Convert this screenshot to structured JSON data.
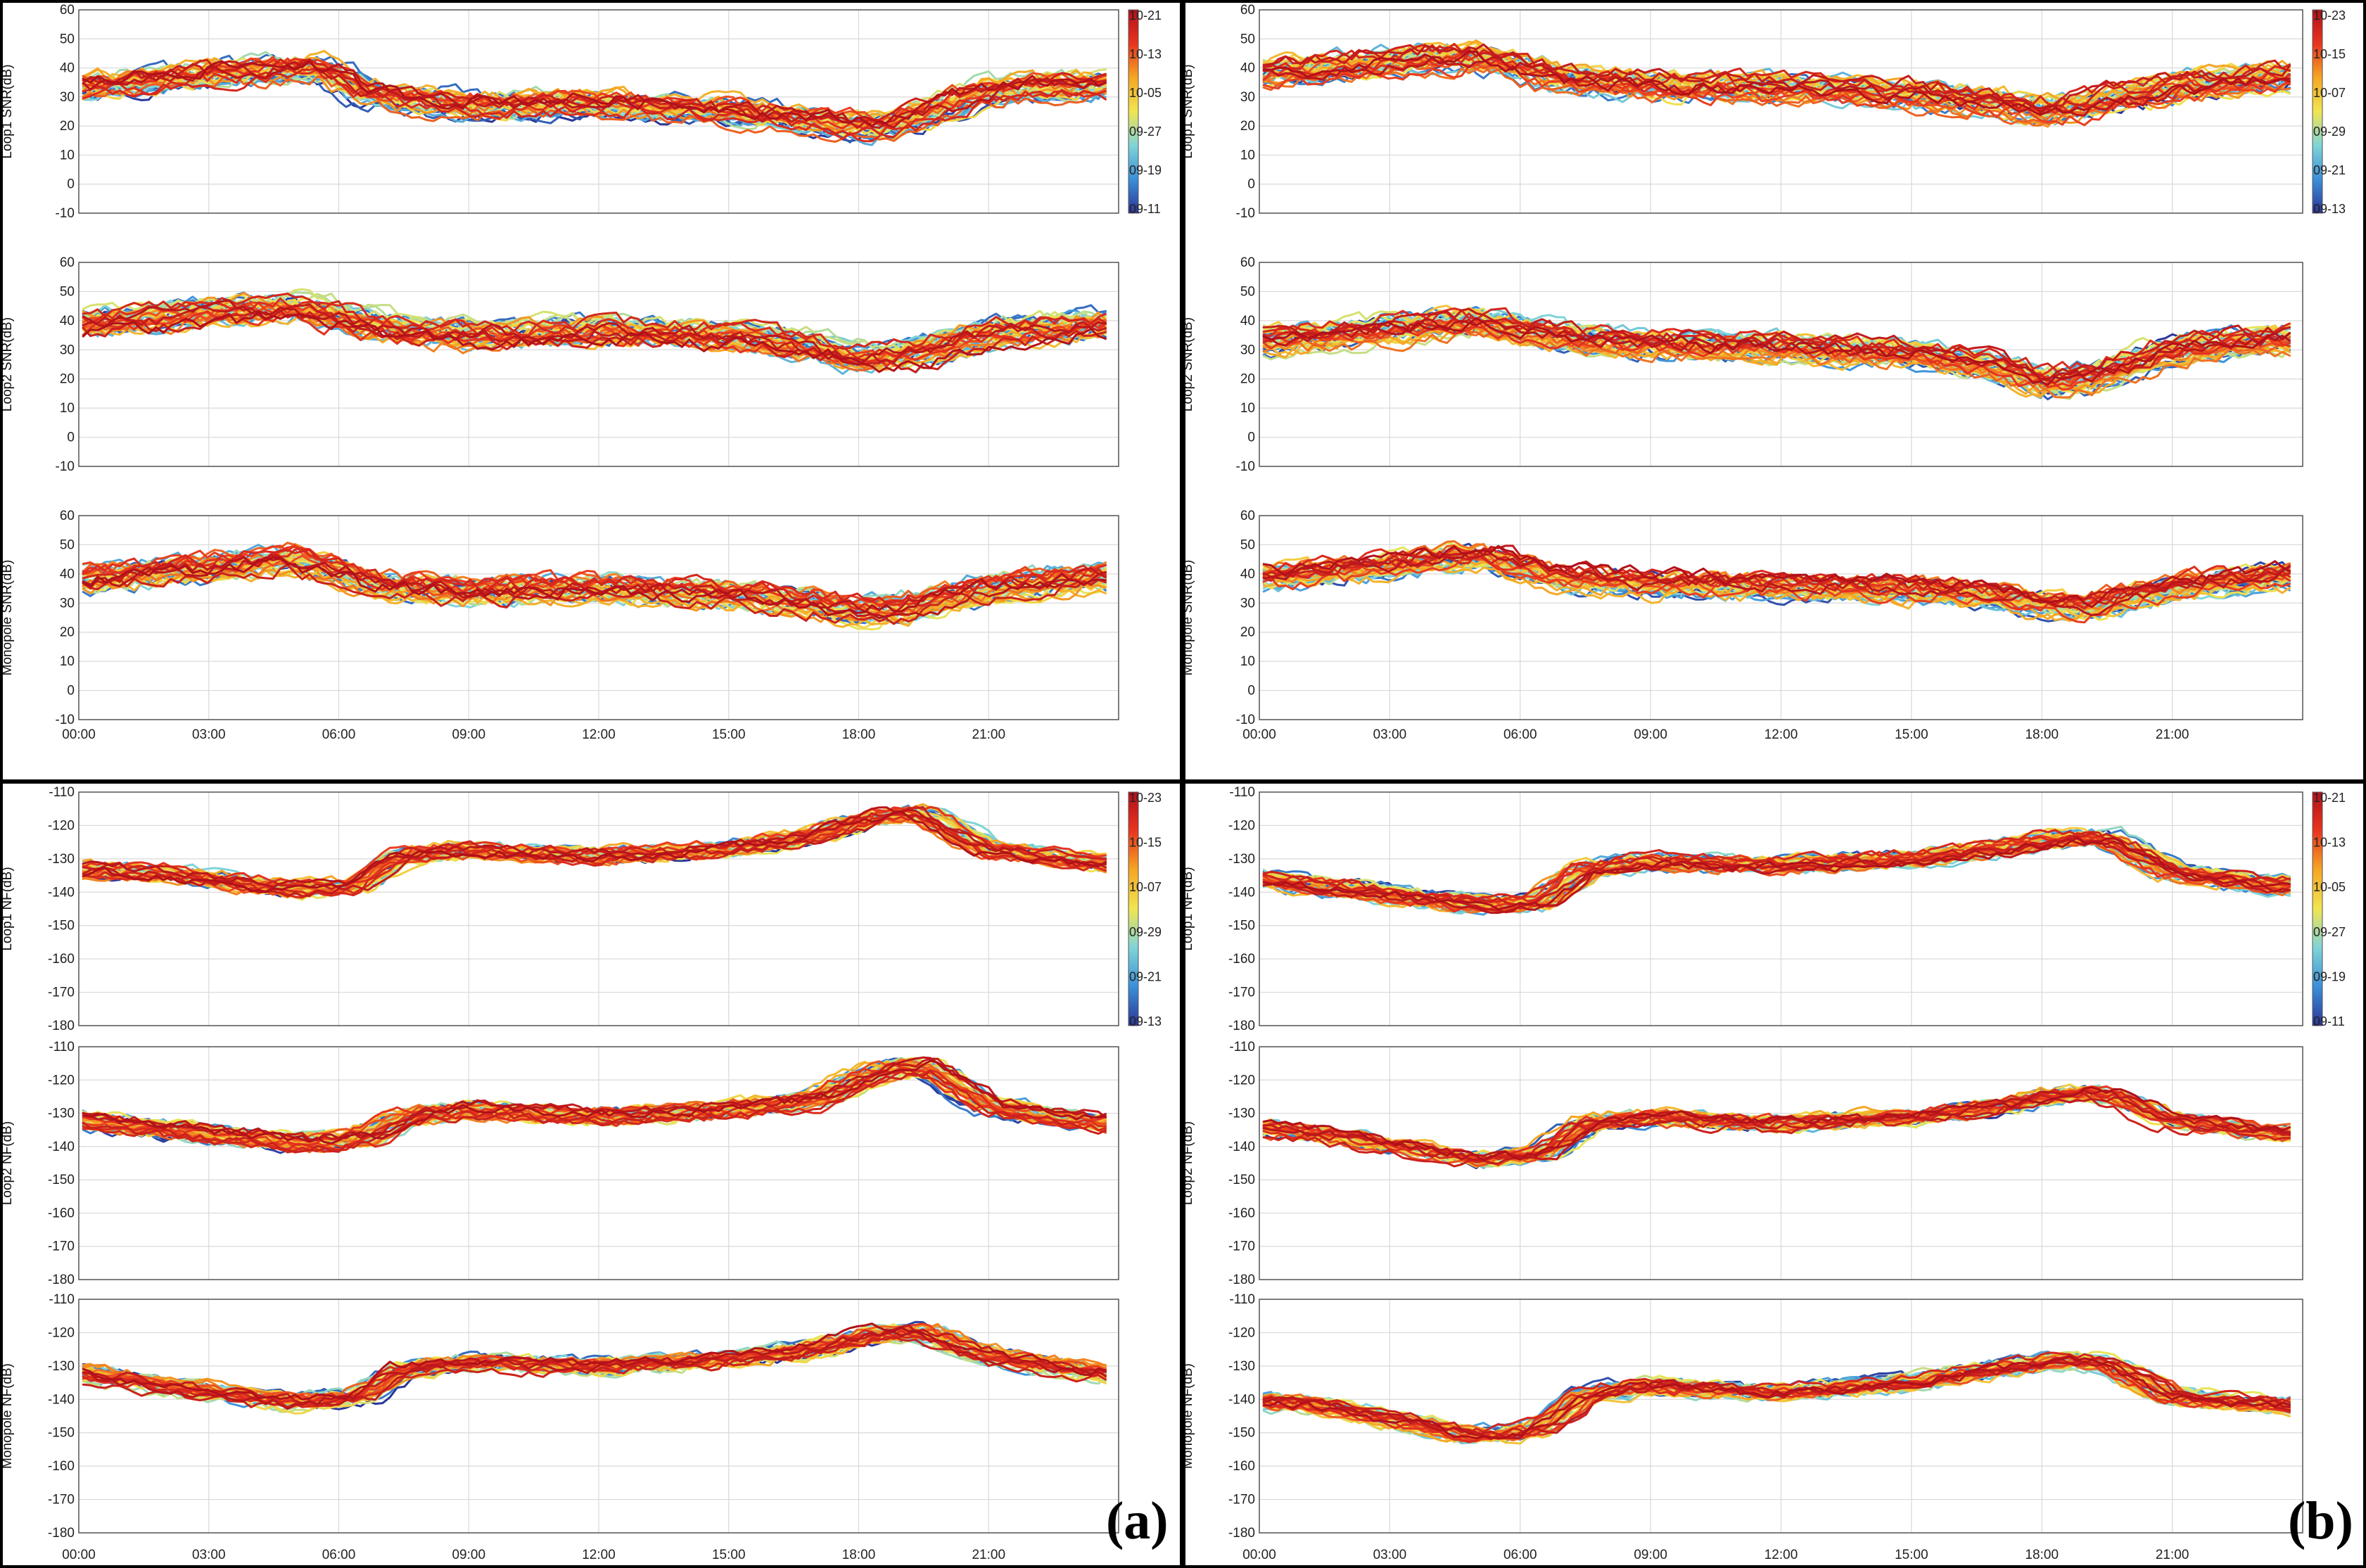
{
  "figure": {
    "panel_labels": [
      "(a)",
      "(b)"
    ]
  },
  "colormap_stops": [
    "#2b3598",
    "#3b8fd9",
    "#7fd4d8",
    "#f1e550",
    "#f5a623",
    "#e8351f",
    "#b2101a"
  ],
  "chart_data": [
    {
      "type": "line",
      "group": "a",
      "metric": "snr",
      "ylabel": "Loop1 SNR(dB)",
      "ylim": [
        -10,
        60
      ],
      "yticks": [
        "60",
        "50",
        "40",
        "30",
        "20",
        "10",
        "0",
        "-10"
      ],
      "xticks": [
        "00:00",
        "03:00",
        "06:00",
        "09:00",
        "12:00",
        "15:00",
        "18:00",
        "21:00"
      ],
      "xlim_hours": [
        0,
        24
      ],
      "colorbar_labels": [
        "10-21",
        "10-13",
        "10-05",
        "09-27",
        "09-19",
        "09-11"
      ],
      "series_count": 40,
      "profile": {
        "hours": [
          0,
          3,
          5.5,
          7,
          9,
          12,
          15,
          17,
          18,
          19,
          21,
          23.5
        ],
        "values": [
          33,
          38,
          40,
          30,
          27,
          28,
          25,
          22,
          20,
          21,
          32,
          34
        ]
      }
    },
    {
      "type": "line",
      "group": "a",
      "metric": "snr",
      "ylabel": "Loop2 SNR(dB)",
      "ylim": [
        -10,
        60
      ],
      "yticks": [
        "60",
        "50",
        "40",
        "30",
        "20",
        "10",
        "0",
        "-10"
      ],
      "xticks": [
        "00:00",
        "03:00",
        "06:00",
        "09:00",
        "12:00",
        "15:00",
        "18:00",
        "21:00"
      ],
      "xlim_hours": [
        0,
        24
      ],
      "series_count": 40,
      "profile": {
        "hours": [
          0,
          3,
          5,
          7,
          9,
          12,
          15,
          17,
          18,
          19,
          21,
          23.5
        ],
        "values": [
          39,
          43,
          45,
          38,
          35,
          37,
          35,
          31,
          27,
          28,
          36,
          39
        ]
      }
    },
    {
      "type": "line",
      "group": "a",
      "metric": "snr",
      "ylabel": "Monopole SNR(dB)",
      "ylim": [
        -10,
        60
      ],
      "yticks": [
        "60",
        "50",
        "40",
        "30",
        "20",
        "10",
        "0",
        "-10"
      ],
      "xticks": [
        "00:00",
        "03:00",
        "06:00",
        "09:00",
        "12:00",
        "15:00",
        "18:00",
        "21:00"
      ],
      "xlim_hours": [
        0,
        24
      ],
      "series_count": 40,
      "profile": {
        "hours": [
          0,
          3,
          5,
          7,
          9,
          12,
          15,
          17,
          18,
          19,
          21,
          23.5
        ],
        "values": [
          38,
          42,
          45,
          36,
          34,
          35,
          33,
          30,
          27,
          28,
          35,
          39
        ]
      }
    },
    {
      "type": "line",
      "group": "b",
      "metric": "snr",
      "ylabel": "Loop1 SNR(dB)",
      "ylim": [
        -10,
        60
      ],
      "yticks": [
        "60",
        "50",
        "40",
        "30",
        "20",
        "10",
        "0",
        "-10"
      ],
      "xticks": [
        "00:00",
        "03:00",
        "06:00",
        "09:00",
        "12:00",
        "15:00",
        "18:00",
        "21:00"
      ],
      "xlim_hours": [
        0,
        24
      ],
      "colorbar_labels": [
        "10-23",
        "10-15",
        "10-07",
        "09-29",
        "09-21",
        "09-13"
      ],
      "series_count": 40,
      "profile": {
        "hours": [
          0,
          3,
          5,
          7,
          9,
          12,
          15,
          17,
          18,
          19,
          21,
          23.5
        ],
        "values": [
          38,
          42,
          44,
          36,
          34,
          33,
          31,
          28,
          25,
          27,
          33,
          37
        ]
      }
    },
    {
      "type": "line",
      "group": "b",
      "metric": "snr",
      "ylabel": "Loop2 SNR(dB)",
      "ylim": [
        -10,
        60
      ],
      "yticks": [
        "60",
        "50",
        "40",
        "30",
        "20",
        "10",
        "0",
        "-10"
      ],
      "xticks": [
        "00:00",
        "03:00",
        "06:00",
        "09:00",
        "12:00",
        "15:00",
        "18:00",
        "21:00"
      ],
      "xlim_hours": [
        0,
        24
      ],
      "series_count": 40,
      "profile": {
        "hours": [
          0,
          3,
          5,
          7,
          9,
          12,
          15,
          17,
          18,
          19,
          21,
          23.5
        ],
        "values": [
          33,
          37,
          40,
          34,
          32,
          31,
          29,
          24,
          19,
          20,
          30,
          34
        ]
      }
    },
    {
      "type": "line",
      "group": "b",
      "metric": "snr",
      "ylabel": "Monopole SNR(dB)",
      "ylim": [
        -10,
        60
      ],
      "yticks": [
        "60",
        "50",
        "40",
        "30",
        "20",
        "10",
        "0",
        "-10"
      ],
      "xticks": [
        "00:00",
        "03:00",
        "06:00",
        "09:00",
        "12:00",
        "15:00",
        "18:00",
        "21:00"
      ],
      "xlim_hours": [
        0,
        24
      ],
      "series_count": 40,
      "profile": {
        "hours": [
          0,
          3,
          5,
          7,
          9,
          12,
          15,
          17,
          18,
          19,
          21,
          23.5
        ],
        "values": [
          38,
          42,
          46,
          38,
          36,
          35,
          34,
          32,
          29,
          28,
          35,
          39
        ]
      }
    },
    {
      "type": "line",
      "group": "a",
      "metric": "nf",
      "ylabel": "Loop1 NF(dB)",
      "ylim": [
        -180,
        -110
      ],
      "yticks": [
        "-110",
        "-120",
        "-130",
        "-140",
        "-150",
        "-160",
        "-170",
        "-180"
      ],
      "xticks": [
        "00:00",
        "03:00",
        "06:00",
        "09:00",
        "12:00",
        "15:00",
        "18:00",
        "21:00"
      ],
      "xlim_hours": [
        0,
        24
      ],
      "colorbar_labels": [
        "10-23",
        "10-15",
        "10-07",
        "09-29",
        "09-21",
        "09-13"
      ],
      "series_count": 40,
      "profile": {
        "hours": [
          0,
          2,
          5,
          6.5,
          7.5,
          9,
          12,
          15,
          17,
          18.5,
          19.5,
          21,
          23.5
        ],
        "values": [
          -133,
          -134,
          -139,
          -138,
          -129,
          -127,
          -129,
          -127,
          -123,
          -117,
          -116,
          -127,
          -131
        ]
      }
    },
    {
      "type": "line",
      "group": "a",
      "metric": "nf",
      "ylabel": "Loop2 NF(dB)",
      "ylim": [
        -180,
        -110
      ],
      "yticks": [
        "-110",
        "-120",
        "-130",
        "-140",
        "-150",
        "-160",
        "-170",
        "-180"
      ],
      "xticks": [
        "00:00",
        "03:00",
        "06:00",
        "09:00",
        "12:00",
        "15:00",
        "18:00",
        "21:00"
      ],
      "xlim_hours": [
        0,
        24
      ],
      "series_count": 40,
      "profile": {
        "hours": [
          0,
          2,
          5,
          6.5,
          7.5,
          9,
          12,
          15,
          17,
          18.5,
          19.5,
          21,
          23.5
        ],
        "values": [
          -132,
          -135,
          -139,
          -138,
          -131,
          -129,
          -131,
          -129,
          -126,
          -117,
          -116,
          -128,
          -133
        ]
      }
    },
    {
      "type": "line",
      "group": "a",
      "metric": "nf",
      "ylabel": "Monopole NF(dB)",
      "ylim": [
        -180,
        -110
      ],
      "yticks": [
        "-110",
        "-120",
        "-130",
        "-140",
        "-150",
        "-160",
        "-170",
        "-180"
      ],
      "xticks": [
        "00:00",
        "03:00",
        "06:00",
        "09:00",
        "12:00",
        "15:00",
        "18:00",
        "21:00"
      ],
      "xlim_hours": [
        0,
        24
      ],
      "series_count": 40,
      "profile": {
        "hours": [
          0,
          2,
          5,
          6.5,
          7.5,
          9,
          12,
          15,
          17,
          18.5,
          19.5,
          21,
          23.5
        ],
        "values": [
          -132,
          -136,
          -141,
          -139,
          -131,
          -129,
          -130,
          -128,
          -125,
          -120,
          -120,
          -127,
          -132
        ]
      }
    },
    {
      "type": "line",
      "group": "b",
      "metric": "nf",
      "ylabel": "Loop1 NF(dB)",
      "ylim": [
        -180,
        -110
      ],
      "yticks": [
        "-110",
        "-120",
        "-130",
        "-140",
        "-150",
        "-160",
        "-170",
        "-180"
      ],
      "xticks": [
        "00:00",
        "03:00",
        "06:00",
        "09:00",
        "12:00",
        "15:00",
        "18:00",
        "21:00"
      ],
      "xlim_hours": [
        0,
        24
      ],
      "colorbar_labels": [
        "10-21",
        "10-13",
        "10-05",
        "09-27",
        "09-19",
        "09-11"
      ],
      "series_count": 40,
      "profile": {
        "hours": [
          0,
          2,
          5,
          6.5,
          7.5,
          9,
          12,
          15,
          17,
          18.5,
          19.5,
          21,
          23.5
        ],
        "values": [
          -136,
          -139,
          -144,
          -143,
          -133,
          -131,
          -132,
          -130,
          -127,
          -124,
          -124,
          -134,
          -138
        ]
      }
    },
    {
      "type": "line",
      "group": "b",
      "metric": "nf",
      "ylabel": "Loop2 NF(dB)",
      "ylim": [
        -180,
        -110
      ],
      "yticks": [
        "-110",
        "-120",
        "-130",
        "-140",
        "-150",
        "-160",
        "-170",
        "-180"
      ],
      "xticks": [
        "00:00",
        "03:00",
        "06:00",
        "09:00",
        "12:00",
        "15:00",
        "18:00",
        "21:00"
      ],
      "xlim_hours": [
        0,
        24
      ],
      "series_count": 40,
      "profile": {
        "hours": [
          0,
          2,
          5,
          6.5,
          7.5,
          9,
          12,
          15,
          17,
          18.5,
          19.5,
          21,
          23.5
        ],
        "values": [
          -134,
          -137,
          -144,
          -142,
          -133,
          -131,
          -133,
          -131,
          -128,
          -124,
          -124,
          -132,
          -136
        ]
      }
    },
    {
      "type": "line",
      "group": "b",
      "metric": "nf",
      "ylabel": "Monopole NF(dB)",
      "ylim": [
        -180,
        -110
      ],
      "yticks": [
        "-110",
        "-120",
        "-130",
        "-140",
        "-150",
        "-160",
        "-170",
        "-180"
      ],
      "xticks": [
        "00:00",
        "03:00",
        "06:00",
        "09:00",
        "12:00",
        "15:00",
        "18:00",
        "21:00"
      ],
      "xlim_hours": [
        0,
        24
      ],
      "series_count": 40,
      "profile": {
        "hours": [
          0,
          2,
          5,
          6.5,
          7.5,
          9,
          12,
          15,
          17,
          18.5,
          19.5,
          21,
          23.5
        ],
        "values": [
          -140,
          -143,
          -151,
          -149,
          -139,
          -136,
          -138,
          -135,
          -131,
          -128,
          -129,
          -139,
          -142
        ]
      }
    }
  ]
}
